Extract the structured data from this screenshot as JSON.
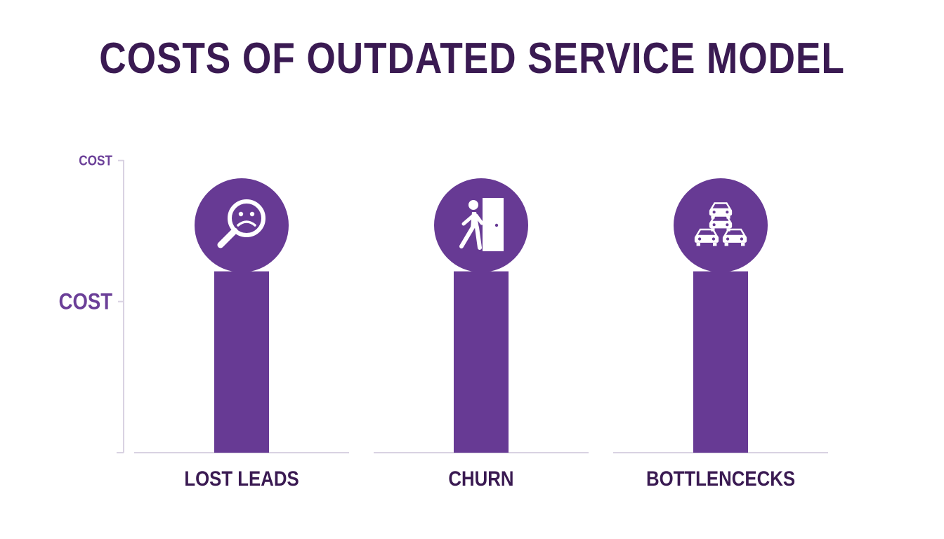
{
  "chart_data": {
    "type": "bar",
    "title": "COSTS OF OUTDATED SERVICE MODEL",
    "xlabel": "",
    "ylabel": "",
    "categories": [
      "LOST LEADS",
      "CHURN",
      "BOTTLENCECKS"
    ],
    "values": [
      0.9,
      0.9,
      0.9
    ],
    "category_icons": [
      "sad-magnifier-icon",
      "person-exiting-door-icon",
      "traffic-jam-cars-icon"
    ],
    "y_ticks": [
      {
        "label": "COST",
        "value": 1.45
      },
      {
        "label": "COST",
        "value": 0.75
      }
    ],
    "ylim": [
      0,
      1.55
    ],
    "grid": false,
    "legend": "none",
    "colors": {
      "bar": "#673a94",
      "title": "#3a1a52",
      "tick_top": "#6b3f98",
      "tick_mid": "#6b3f98",
      "axis": "#d9d2e2",
      "category_label": "#3a1a52"
    }
  }
}
